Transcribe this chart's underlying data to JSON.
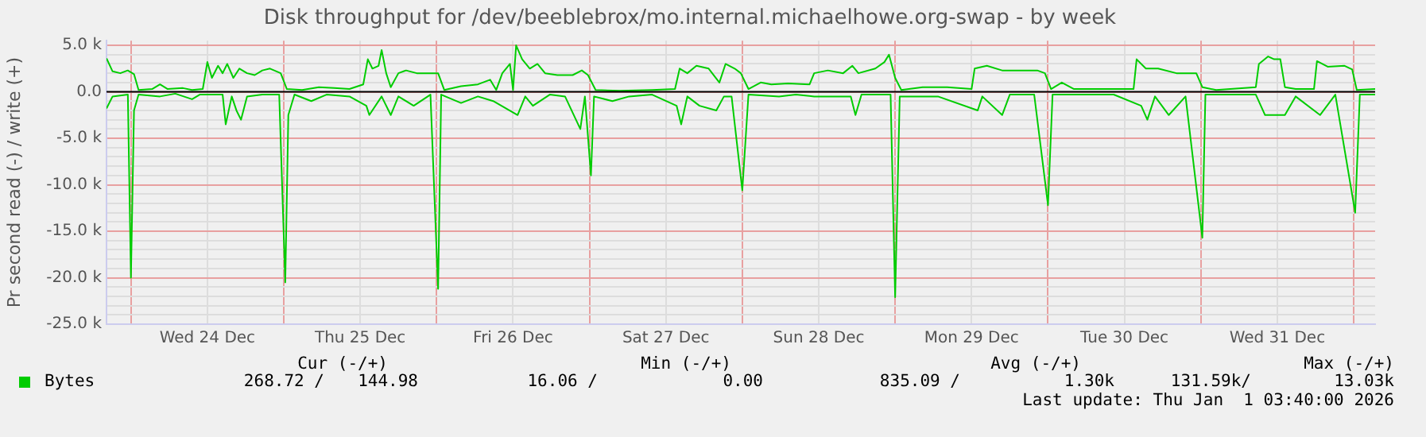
{
  "chart_data": {
    "type": "line",
    "title": "Disk throughput for /dev/beeblebrox/mo.internal.michaelhowe.org-swap - by week",
    "ylabel": "Pr second read (-) / write (+)",
    "xlim": [
      "2025-12-23T20:10",
      "2026-01-01T03:22"
    ],
    "xticks": [
      {
        "value": "2025-12-24T00:00",
        "label": null
      },
      {
        "value": "2025-12-24T12:00",
        "label": "Wed 24 Dec"
      },
      {
        "value": "2025-12-25T00:00",
        "label": null
      },
      {
        "value": "2025-12-25T12:00",
        "label": "Thu 25 Dec"
      },
      {
        "value": "2025-12-26T00:00",
        "label": null
      },
      {
        "value": "2025-12-26T12:00",
        "label": "Fri 26 Dec"
      },
      {
        "value": "2025-12-27T00:00",
        "label": null
      },
      {
        "value": "2025-12-27T12:00",
        "label": "Sat 27 Dec"
      },
      {
        "value": "2025-12-28T00:00",
        "label": null
      },
      {
        "value": "2025-12-28T12:00",
        "label": "Sun 28 Dec"
      },
      {
        "value": "2025-12-29T00:00",
        "label": null
      },
      {
        "value": "2025-12-29T12:00",
        "label": "Mon 29 Dec"
      },
      {
        "value": "2025-12-30T00:00",
        "label": null
      },
      {
        "value": "2025-12-30T12:00",
        "label": "Tue 30 Dec"
      },
      {
        "value": "2025-12-31T00:00",
        "label": null
      },
      {
        "value": "2025-12-31T12:00",
        "label": "Wed 31 Dec"
      },
      {
        "value": "2026-01-01T00:00",
        "label": null
      }
    ],
    "ylim": [
      -25000,
      5500
    ],
    "yticks": [
      {
        "value": -25000,
        "label": "-25.0 k"
      },
      {
        "value": -24000,
        "label": null
      },
      {
        "value": -23000,
        "label": null
      },
      {
        "value": -22000,
        "label": null
      },
      {
        "value": -21000,
        "label": null
      },
      {
        "value": -20000,
        "label": "-20.0 k"
      },
      {
        "value": -19000,
        "label": null
      },
      {
        "value": -18000,
        "label": null
      },
      {
        "value": -17000,
        "label": null
      },
      {
        "value": -16000,
        "label": null
      },
      {
        "value": -15000,
        "label": "-15.0 k"
      },
      {
        "value": -14000,
        "label": null
      },
      {
        "value": -13000,
        "label": null
      },
      {
        "value": -12000,
        "label": null
      },
      {
        "value": -11000,
        "label": null
      },
      {
        "value": -10000,
        "label": "-10.0 k"
      },
      {
        "value": -9000,
        "label": null
      },
      {
        "value": -8000,
        "label": null
      },
      {
        "value": -7000,
        "label": null
      },
      {
        "value": -6000,
        "label": null
      },
      {
        "value": -5000,
        "label": "-5.0 k"
      },
      {
        "value": -4000,
        "label": null
      },
      {
        "value": -3000,
        "label": null
      },
      {
        "value": -2000,
        "label": null
      },
      {
        "value": -1000,
        "label": null
      },
      {
        "value": 0,
        "label": "0.0"
      },
      {
        "value": 1000,
        "label": null
      },
      {
        "value": 2000,
        "label": null
      },
      {
        "value": 3000,
        "label": null
      },
      {
        "value": 4000,
        "label": null
      },
      {
        "value": 5000,
        "label": "5.0 k"
      }
    ],
    "grid": true,
    "legend": "bottom left",
    "marker": "none",
    "line_style": "solid",
    "ref_lines": [
      {
        "axis": "y",
        "value": 0,
        "label": null,
        "color": "#000000"
      }
    ],
    "series": [
      {
        "name": "Bytes",
        "color": "#00cc00",
        "x": [
          "2025-12-23T20:10",
          "2025-12-23T21:07",
          "2025-12-23T22:20",
          "2025-12-23T23:30",
          "2025-12-24T00:29",
          "2025-12-24T01:12",
          "2025-12-24T03:20",
          "2025-12-24T04:34",
          "2025-12-24T05:46",
          "2025-12-24T08:10",
          "2025-12-24T09:36",
          "2025-12-24T11:17",
          "2025-12-24T12:00",
          "2025-12-24T12:43",
          "2025-12-24T13:41",
          "2025-12-24T14:24",
          "2025-12-24T15:07",
          "2025-12-24T16:05",
          "2025-12-24T17:02",
          "2025-12-24T18:14",
          "2025-12-24T19:26",
          "2025-12-24T20:38",
          "2025-12-24T21:50",
          "2025-12-24T23:31",
          "2025-12-25T00:29",
          "2025-12-25T02:53",
          "2025-12-25T05:31",
          "2025-12-25T07:55",
          "2025-12-25T10:19",
          "2025-12-25T12:29",
          "2025-12-25T13:12",
          "2025-12-25T13:55",
          "2025-12-25T14:53",
          "2025-12-25T15:22",
          "2025-12-25T16:05",
          "2025-12-25T16:48",
          "2025-12-25T18:00",
          "2025-12-25T19:12",
          "2025-12-25T20:53",
          "2025-12-25T23:02",
          "2025-12-26T00:14",
          "2025-12-26T01:12",
          "2025-12-26T03:50",
          "2025-12-26T06:29",
          "2025-12-26T08:24",
          "2025-12-26T09:22",
          "2025-12-26T10:19",
          "2025-12-26T11:31",
          "2025-12-26T12:00",
          "2025-12-26T12:29",
          "2025-12-26T13:26",
          "2025-12-26T14:38",
          "2025-12-26T15:50",
          "2025-12-26T17:02",
          "2025-12-26T18:58",
          "2025-12-26T21:22",
          "2025-12-26T22:48",
          "2025-12-26T23:46",
          "2025-12-27T00:58",
          "2025-12-27T04:48",
          "2025-12-27T09:50",
          "2025-12-27T13:26",
          "2025-12-27T14:10",
          "2025-12-27T15:22",
          "2025-12-27T16:48",
          "2025-12-27T18:43",
          "2025-12-27T20:24",
          "2025-12-27T21:22",
          "2025-12-27T22:48",
          "2025-12-27T23:46",
          "2025-12-28T00:58",
          "2025-12-28T02:53",
          "2025-12-28T04:34",
          "2025-12-28T07:12",
          "2025-12-28T10:34",
          "2025-12-28T11:17",
          "2025-12-28T13:26",
          "2025-12-28T15:50",
          "2025-12-28T17:17",
          "2025-12-28T18:14",
          "2025-12-28T20:53",
          "2025-12-28T22:19",
          "2025-12-28T23:02",
          "2025-12-29T00:00",
          "2025-12-29T00:58",
          "2025-12-29T04:19",
          "2025-12-29T08:10",
          "2025-12-29T12:00",
          "2025-12-29T12:29",
          "2025-12-29T14:24",
          "2025-12-29T16:48",
          "2025-12-29T19:12",
          "2025-12-29T22:19",
          "2025-12-29T23:31",
          "2025-12-30T00:29",
          "2025-12-30T02:10",
          "2025-12-30T04:05",
          "2025-12-30T07:41",
          "2025-12-30T13:26",
          "2025-12-30T13:55",
          "2025-12-30T15:22",
          "2025-12-30T17:17",
          "2025-12-30T20:10",
          "2025-12-30T23:17",
          "2025-12-31T00:14",
          "2025-12-31T02:24",
          "2025-12-31T08:38",
          "2025-12-31T09:07",
          "2025-12-31T10:34",
          "2025-12-31T11:31",
          "2025-12-31T12:29",
          "2025-12-31T13:12",
          "2025-12-31T14:53",
          "2025-12-31T17:46",
          "2025-12-31T18:14",
          "2025-12-31T19:55",
          "2025-12-31T22:34",
          "2025-12-31T23:46",
          "2026-01-01T00:29",
          "2026-01-01T03:22"
        ],
        "values": [
          3600,
          2200,
          2000,
          2300,
          1900,
          200,
          300,
          800,
          300,
          400,
          200,
          300,
          3200,
          1500,
          2800,
          2000,
          3000,
          1500,
          2500,
          2000,
          1800,
          2300,
          2500,
          2000,
          300,
          200,
          500,
          400,
          300,
          800,
          3500,
          2500,
          2800,
          4500,
          2000,
          500,
          2000,
          2300,
          2000,
          2000,
          2000,
          200,
          600,
          800,
          1300,
          200,
          2000,
          3000,
          200,
          5000,
          3500,
          2500,
          3000,
          2000,
          1800,
          1800,
          2300,
          1800,
          200,
          100,
          200,
          300,
          2500,
          2000,
          2800,
          2500,
          1000,
          3000,
          2500,
          2000,
          300,
          1000,
          800,
          900,
          800,
          2000,
          2300,
          2000,
          2800,
          2000,
          2500,
          3200,
          4000,
          1500,
          200,
          500,
          500,
          300,
          2500,
          2800,
          2300,
          2300,
          2300,
          2000,
          300,
          1000,
          300,
          300,
          300,
          3500,
          2500,
          2500,
          2000,
          2000,
          500,
          200,
          500,
          3000,
          3800,
          3500,
          3500,
          500,
          300,
          300,
          3300,
          2700,
          2800,
          2400,
          200,
          300
        ]
      },
      {
        "color": "#00cc00",
        "x": [
          "2025-12-23T20:10",
          "2025-12-23T21:07",
          "2025-12-23T23:31",
          "2025-12-24T00:00",
          "2025-12-24T00:29",
          "2025-12-24T01:12",
          "2025-12-24T04:34",
          "2025-12-24T06:58",
          "2025-12-24T09:36",
          "2025-12-24T10:48",
          "2025-12-24T14:24",
          "2025-12-24T14:53",
          "2025-12-24T15:50",
          "2025-12-24T16:34",
          "2025-12-24T17:17",
          "2025-12-24T18:14",
          "2025-12-24T20:38",
          "2025-12-24T23:17",
          "2025-12-25T00:14",
          "2025-12-25T00:43",
          "2025-12-25T01:41",
          "2025-12-25T04:19",
          "2025-12-25T06:43",
          "2025-12-25T10:19",
          "2025-12-25T12:58",
          "2025-12-25T13:26",
          "2025-12-25T15:22",
          "2025-12-25T16:48",
          "2025-12-25T18:00",
          "2025-12-25T20:24",
          "2025-12-25T23:02",
          "2025-12-26T00:14",
          "2025-12-26T00:43",
          "2025-12-26T03:50",
          "2025-12-26T06:29",
          "2025-12-26T08:53",
          "2025-12-26T12:43",
          "2025-12-26T13:55",
          "2025-12-26T15:07",
          "2025-12-26T17:46",
          "2025-12-26T20:10",
          "2025-12-26T22:34",
          "2025-12-26T23:17",
          "2025-12-27T00:14",
          "2025-12-27T00:43",
          "2025-12-27T03:36",
          "2025-12-27T06:14",
          "2025-12-27T09:50",
          "2025-12-27T13:41",
          "2025-12-27T14:24",
          "2025-12-27T15:22",
          "2025-12-27T17:17",
          "2025-12-27T19:55",
          "2025-12-27T21:07",
          "2025-12-27T22:19",
          "2025-12-28T00:00",
          "2025-12-28T00:58",
          "2025-12-28T05:46",
          "2025-12-28T08:24",
          "2025-12-28T11:17",
          "2025-12-28T17:02",
          "2025-12-28T17:46",
          "2025-12-28T18:43",
          "2025-12-28T23:17",
          "2025-12-29T00:00",
          "2025-12-29T00:43",
          "2025-12-29T06:43",
          "2025-12-29T12:58",
          "2025-12-29T13:41",
          "2025-12-29T16:48",
          "2025-12-29T18:00",
          "2025-12-29T21:50",
          "2025-12-30T00:00",
          "2025-12-30T00:43",
          "2025-12-30T10:19",
          "2025-12-30T14:38",
          "2025-12-30T15:36",
          "2025-12-30T16:48",
          "2025-12-30T18:58",
          "2025-12-30T21:36",
          "2025-12-31T00:14",
          "2025-12-31T00:43",
          "2025-12-31T08:38",
          "2025-12-31T10:05",
          "2025-12-31T13:12",
          "2025-12-31T14:53",
          "2025-12-31T18:43",
          "2025-12-31T21:07",
          "2026-01-01T00:14",
          "2026-01-01T00:58",
          "2026-01-01T03:22"
        ],
        "values": [
          -1800,
          -500,
          -300,
          -20000,
          -2000,
          -300,
          -500,
          -200,
          -800,
          -300,
          -300,
          -3500,
          -500,
          -2000,
          -3000,
          -500,
          -300,
          -300,
          -20500,
          -2500,
          -300,
          -1000,
          -300,
          -500,
          -1500,
          -2500,
          -500,
          -2500,
          -500,
          -1500,
          -300,
          -21200,
          -300,
          -1200,
          -500,
          -1000,
          -2500,
          -500,
          -1500,
          -300,
          -500,
          -4000,
          -500,
          -9000,
          -500,
          -1000,
          -500,
          -300,
          -1500,
          -3500,
          -500,
          -1500,
          -2000,
          -500,
          -500,
          -10600,
          -300,
          -500,
          -300,
          -500,
          -500,
          -2500,
          -300,
          -300,
          -22100,
          -500,
          -500,
          -2000,
          -500,
          -2500,
          -300,
          -300,
          -12200,
          -300,
          -300,
          -1500,
          -3000,
          -500,
          -2500,
          -500,
          -15700,
          -300,
          -300,
          -2500,
          -2500,
          -500,
          -2500,
          -300,
          -13000,
          -300,
          -300
        ]
      }
    ],
    "annotations": [
      "Cur (-/+)",
      "Min (-/+)",
      "Avg (-/+)",
      "Max (-/+)",
      "268.72 /",
      "144.98",
      "16.06 /",
      "0.00",
      "835.09 /",
      "1.30k",
      "131.59k/",
      "13.03k",
      "Last update: Thu Jan  1 03:40:00 2026"
    ]
  }
}
